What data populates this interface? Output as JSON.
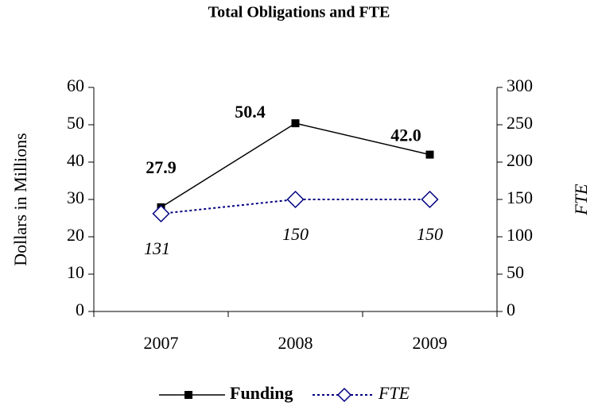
{
  "chart_data": {
    "type": "line",
    "title": "Total Obligations and FTE",
    "categories": [
      "2007",
      "2008",
      "2009"
    ],
    "ylabel": "Dollars in Millions",
    "y2label": "FTE",
    "ylim": [
      0,
      60
    ],
    "yticks": [
      0,
      10,
      20,
      30,
      40,
      50,
      60
    ],
    "y2lim": [
      0,
      300
    ],
    "y2ticks": [
      0,
      50,
      100,
      150,
      200,
      250,
      300
    ],
    "series": [
      {
        "name": "Funding",
        "color": "#000000",
        "values": [
          27.9,
          50.4,
          42.0
        ],
        "value_labels": [
          "27.9",
          "50.4",
          "42.0"
        ]
      },
      {
        "name": "FTE",
        "color": "#000080",
        "axis": "y2",
        "values": [
          131,
          150,
          150
        ]
      }
    ]
  }
}
